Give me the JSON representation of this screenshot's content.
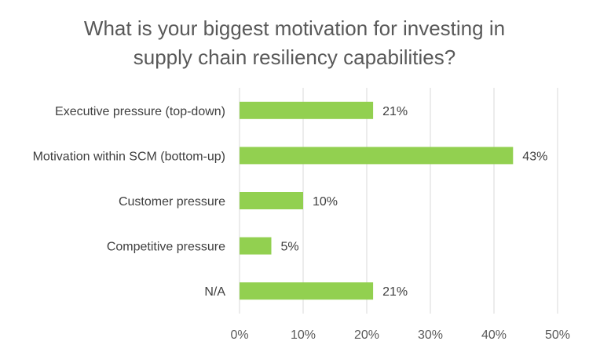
{
  "chart_data": {
    "type": "bar",
    "orientation": "horizontal",
    "title": [
      "What is your biggest motivation for investing in",
      "supply chain resiliency capabilities?"
    ],
    "categories": [
      "Executive pressure (top-down)",
      "Motivation within SCM (bottom-up)",
      "Customer pressure",
      "Competitive pressure",
      "N/A"
    ],
    "values": [
      21,
      43,
      10,
      5,
      21
    ],
    "value_labels": [
      "21%",
      "43%",
      "10%",
      "5%",
      "21%"
    ],
    "xlim": [
      0,
      50
    ],
    "xticks": [
      "0%",
      "10%",
      "20%",
      "30%",
      "40%",
      "50%"
    ],
    "grid": "vertical",
    "legend": "none",
    "bar_color": "#92D050",
    "grid_color": "#D9D9D9"
  }
}
